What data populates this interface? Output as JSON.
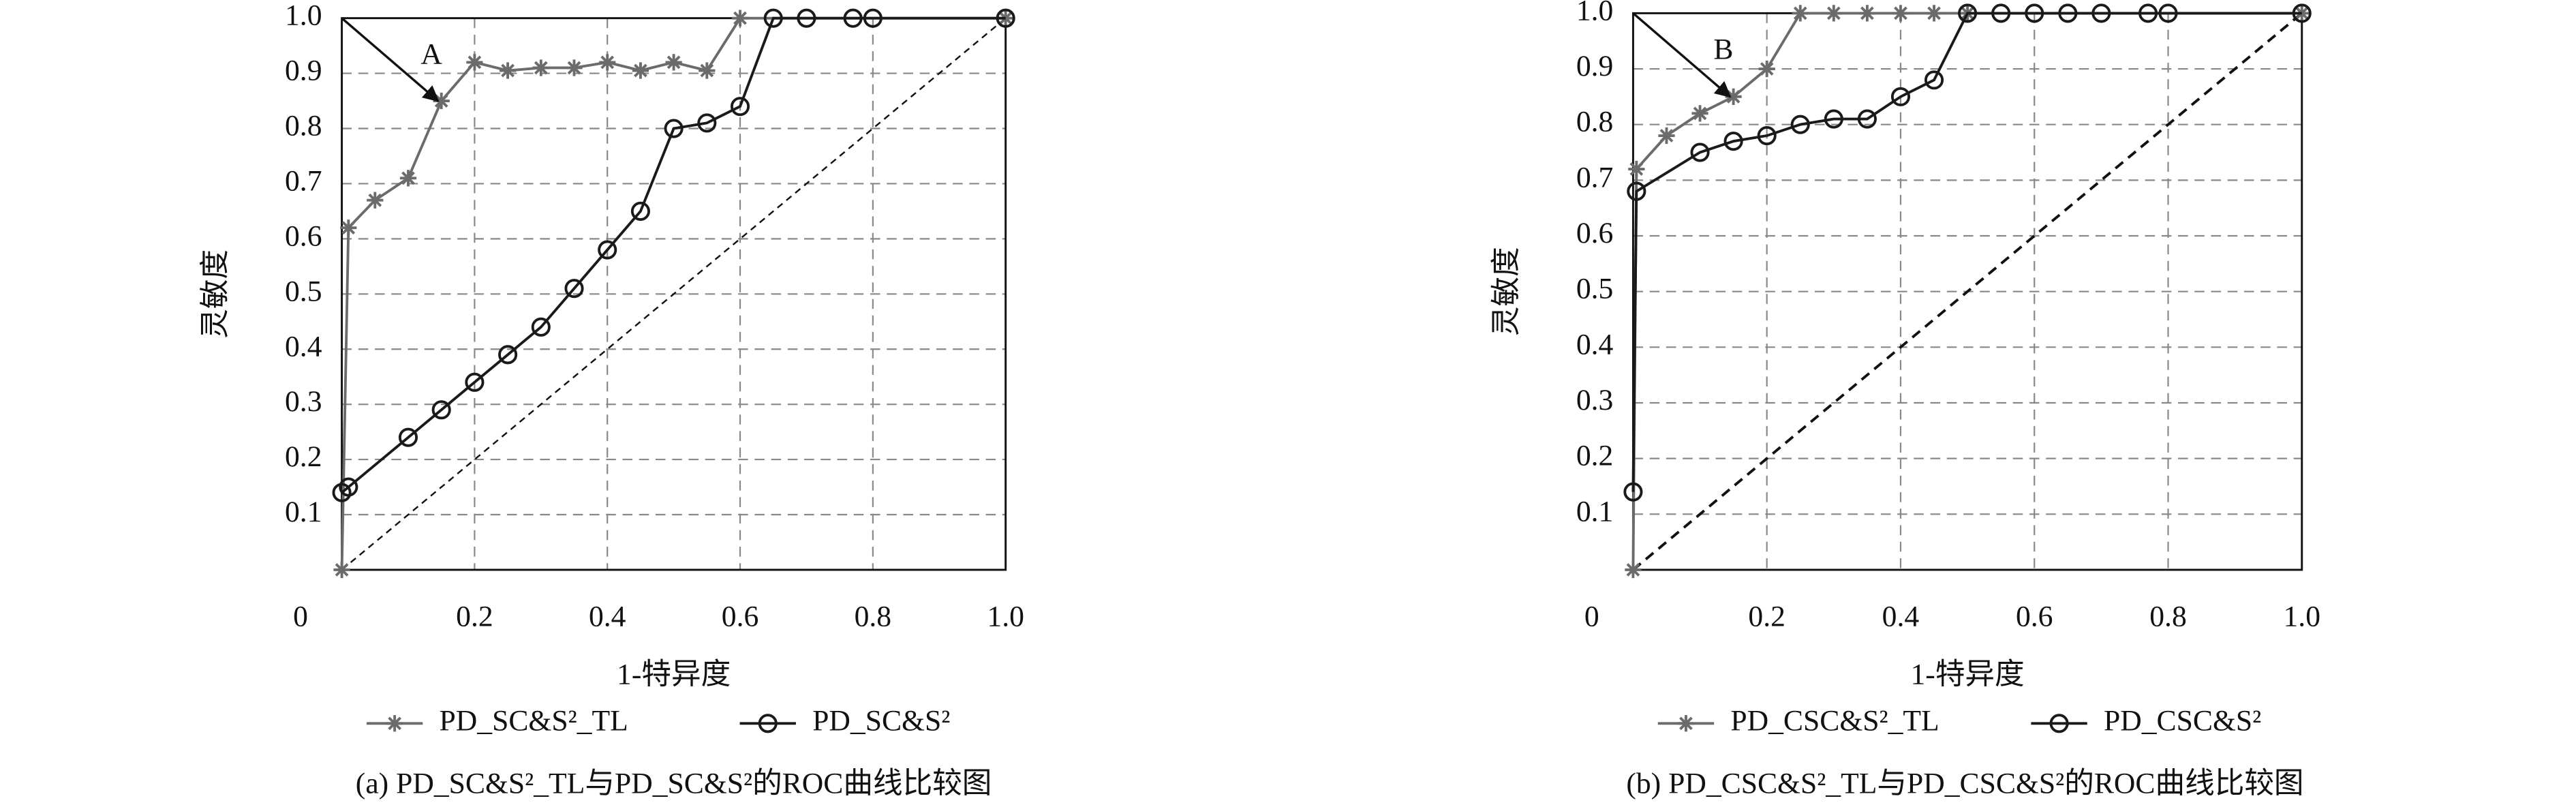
{
  "chart_data": [
    {
      "type": "line",
      "caption": "(a) PD_SC&S²_TL与PD_SC&S²的ROC曲线比较图",
      "xlabel": "1-特异度",
      "ylabel": "灵敏度",
      "annotation": "A",
      "xlim": [
        0,
        1
      ],
      "ylim": [
        0,
        1
      ],
      "xticks": [
        0,
        0.2,
        0.4,
        0.6,
        0.8,
        {
          "value": 1,
          "label": "1.0"
        }
      ],
      "yticks": [
        0.1,
        0.2,
        0.3,
        0.4,
        0.5,
        0.6,
        0.7,
        0.8,
        0.9,
        {
          "value": 1,
          "label": "1.0"
        }
      ],
      "grid": true,
      "series": [
        {
          "name": "PD_SC&S²_TL",
          "color": "#6b6b6b",
          "marker": "star",
          "x": [
            0,
            0.01,
            0.05,
            0.1,
            0.15,
            0.2,
            0.25,
            0.3,
            0.35,
            0.4,
            0.45,
            0.5,
            0.55,
            0.6,
            1
          ],
          "values": [
            0,
            0.62,
            0.67,
            0.71,
            0.85,
            0.92,
            0.905,
            0.91,
            0.91,
            0.92,
            0.905,
            0.92,
            0.905,
            1,
            1
          ]
        },
        {
          "name": "PD_SC&S²",
          "color": "#1a1a1a",
          "marker": "circle",
          "x": [
            0,
            0.01,
            0.1,
            0.15,
            0.2,
            0.25,
            0.3,
            0.35,
            0.4,
            0.45,
            0.5,
            0.55,
            0.6,
            0.65,
            0.7,
            0.77,
            0.8,
            1
          ],
          "values": [
            0.14,
            0.15,
            0.24,
            0.29,
            0.34,
            0.39,
            0.44,
            0.51,
            0.58,
            0.65,
            0.8,
            0.81,
            0.84,
            1,
            1,
            1,
            1,
            1
          ]
        }
      ]
    },
    {
      "type": "line",
      "caption": "(b) PD_CSC&S²_TL与PD_CSC&S²的ROC曲线比较图",
      "xlabel": "1-特异度",
      "ylabel": "灵敏度",
      "annotation": "B",
      "xlim": [
        0,
        1
      ],
      "ylim": [
        0,
        1
      ],
      "xticks": [
        0,
        0.2,
        0.4,
        0.6,
        0.8,
        {
          "value": 1,
          "label": "1.0"
        }
      ],
      "yticks": [
        0.1,
        0.2,
        0.3,
        0.4,
        0.5,
        0.6,
        0.7,
        0.8,
        0.9,
        {
          "value": 1,
          "label": "1.0"
        }
      ],
      "grid": true,
      "series": [
        {
          "name": "PD_CSC&S²_TL",
          "color": "#6b6b6b",
          "marker": "star",
          "x": [
            0,
            0.005,
            0.05,
            0.1,
            0.15,
            0.2,
            0.25,
            0.3,
            0.35,
            0.4,
            0.45,
            0.5,
            1
          ],
          "values": [
            0,
            0.72,
            0.78,
            0.82,
            0.85,
            0.9,
            1,
            1,
            1,
            1,
            1,
            1,
            1
          ]
        },
        {
          "name": "PD_CSC&S²",
          "color": "#1a1a1a",
          "marker": "circle",
          "x": [
            0,
            0.005,
            0.1,
            0.15,
            0.2,
            0.25,
            0.3,
            0.35,
            0.4,
            0.45,
            0.5,
            0.55,
            0.6,
            0.65,
            0.7,
            0.77,
            0.8,
            1
          ],
          "values": [
            0.14,
            0.68,
            0.75,
            0.77,
            0.78,
            0.8,
            0.81,
            0.81,
            0.85,
            0.88,
            1,
            1,
            1,
            1,
            1,
            1,
            1,
            1
          ]
        }
      ]
    }
  ]
}
